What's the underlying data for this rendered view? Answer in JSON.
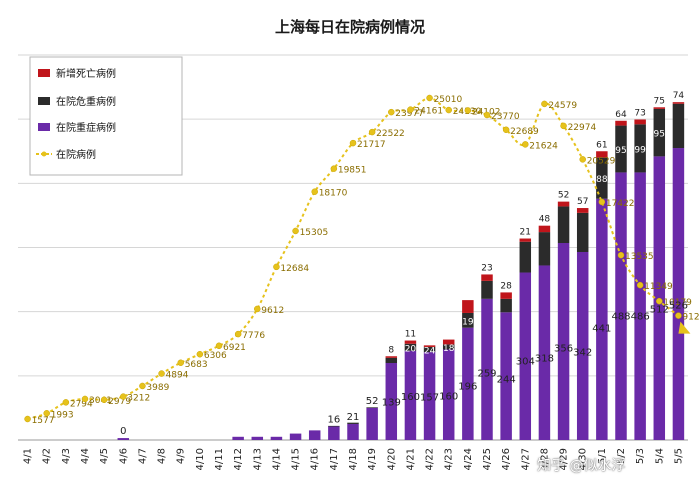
{
  "chart_data": {
    "type": "bar",
    "title": "上海每日在院病例情况",
    "categories": [
      "4/1",
      "4/2",
      "4/3",
      "4/4",
      "4/5",
      "4/6",
      "4/7",
      "4/8",
      "4/9",
      "4/10",
      "4/11",
      "4/12",
      "4/13",
      "4/14",
      "4/15",
      "4/16",
      "4/17",
      "4/18",
      "4/19",
      "4/20",
      "4/21",
      "4/22",
      "4/23",
      "4/24",
      "4/25",
      "4/26",
      "4/27",
      "4/28",
      "4/29",
      "4/30",
      "5/1",
      "5/2",
      "5/3",
      "5/4",
      "5/5"
    ],
    "bar_axis": {
      "ylim": [
        0,
        60
      ],
      "gridlines": [
        0,
        10,
        20,
        30,
        40,
        50,
        60
      ]
    },
    "series": [
      {
        "name": "新增死亡病例",
        "color": "#c0151b",
        "values": [
          0,
          0,
          0,
          0,
          0,
          0,
          0,
          0,
          0,
          0,
          0,
          0,
          0,
          0,
          0,
          0,
          0,
          0,
          0,
          1,
          2,
          1,
          3,
          8,
          4,
          4,
          2,
          4,
          3,
          3,
          4,
          3,
          3,
          1,
          1
        ]
      },
      {
        "name": "在院危重病例",
        "color": "#2b2b2b",
        "values": [
          0,
          0,
          0,
          0,
          0,
          0,
          0,
          0,
          0,
          0,
          0,
          0,
          0,
          0,
          0,
          0,
          1,
          2,
          1,
          8,
          11,
          8,
          8,
          23,
          28,
          21,
          48,
          52,
          57,
          61,
          64,
          73,
          75,
          74,
          69
        ]
      },
      {
        "name": "在院重症病例",
        "color": "#6a2aa8",
        "values": [
          0,
          0,
          0,
          0,
          0,
          0.3,
          0,
          0,
          0,
          0,
          0,
          0.5,
          0.5,
          0.5,
          1,
          1.5,
          2.1,
          2.5,
          5,
          12,
          13.9,
          13.7,
          14.1,
          17.5,
          22,
          19.9,
          26.1,
          27.2,
          30.7,
          29.3,
          37.6,
          41.7,
          41.7,
          44.2,
          45.5
        ]
      },
      {
        "name": "在院病例",
        "color": "#e6c21c",
        "values": [
          1577,
          1993,
          2794,
          3041,
          2979,
          3212,
          3989,
          4894,
          5683,
          6306,
          6921,
          7776,
          9612,
          12684,
          15305,
          18170,
          19851,
          21717,
          22522,
          23977,
          24161,
          25010,
          24130,
          24102,
          23770,
          22689,
          21624,
          24579,
          22974,
          20529,
          17422,
          13535,
          11349,
          10179,
          9122
        ]
      }
    ],
    "bar_labels": {
      "危重": [
        {
          "i": 19,
          "t": "8"
        },
        {
          "i": 20,
          "t": "11"
        },
        {
          "i": 24,
          "t": "23"
        },
        {
          "i": 25,
          "t": "28"
        },
        {
          "i": 26,
          "t": "21"
        },
        {
          "i": 27,
          "t": "48"
        },
        {
          "i": 28,
          "t": "52"
        },
        {
          "i": 29,
          "t": "57"
        },
        {
          "i": 30,
          "t": "61"
        },
        {
          "i": 31,
          "t": "64"
        },
        {
          "i": 32,
          "t": "73"
        },
        {
          "i": 33,
          "t": "75"
        },
        {
          "i": 34,
          "t": "74"
        }
      ],
      "重症_inside": [
        {
          "i": 20,
          "t": "20"
        },
        {
          "i": 21,
          "t": "24"
        },
        {
          "i": 22,
          "t": "18"
        },
        {
          "i": 23,
          "t": "19"
        },
        {
          "i": 30,
          "t": "88"
        },
        {
          "i": 31,
          "t": "95"
        },
        {
          "i": 32,
          "t": "99"
        },
        {
          "i": 33,
          "t": "95"
        }
      ],
      "重症": [
        {
          "i": 5,
          "t": "0"
        },
        {
          "i": 16,
          "t": "16"
        },
        {
          "i": 17,
          "t": "21"
        },
        {
          "i": 18,
          "t": "52"
        },
        {
          "i": 19,
          "t": "139"
        },
        {
          "i": 20,
          "t": "160"
        },
        {
          "i": 21,
          "t": "157"
        },
        {
          "i": 22,
          "t": "160"
        },
        {
          "i": 23,
          "t": "196"
        },
        {
          "i": 24,
          "t": "259"
        },
        {
          "i": 25,
          "t": "244"
        },
        {
          "i": 26,
          "t": "304"
        },
        {
          "i": 27,
          "t": "318"
        },
        {
          "i": 28,
          "t": "356"
        },
        {
          "i": 29,
          "t": "342"
        },
        {
          "i": 30,
          "t": "441"
        },
        {
          "i": 31,
          "t": "488"
        },
        {
          "i": 32,
          "t": "486"
        },
        {
          "i": 33,
          "t": "512"
        },
        {
          "i": 34,
          "t": "526"
        }
      ]
    },
    "legend": {
      "position": "top-left"
    },
    "grid": true
  },
  "watermark": "知乎 @似水浮"
}
